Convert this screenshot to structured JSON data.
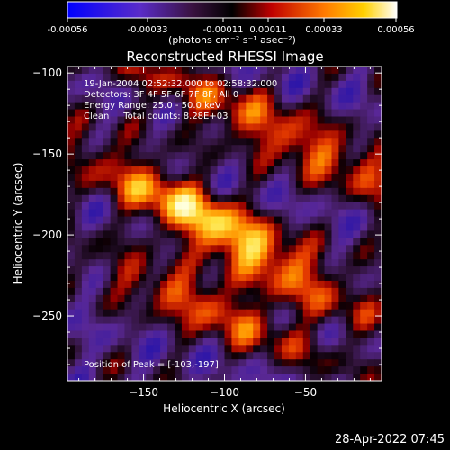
{
  "colorbar": {
    "ticks": [
      "-0.00056",
      "-0.00033",
      "-0.00011",
      "0.00011",
      "0.00033",
      "0.00056"
    ],
    "units": "(photons cm⁻² s⁻¹ asec⁻²)"
  },
  "plot": {
    "title": "Reconstructed RHESSI Image",
    "xlabel": "Heliocentric X (arcsec)",
    "ylabel": "Heliocentric Y (arcsec)",
    "info_lines": [
      "19-Jan-2004 02:52:32.000 to 02:58:32.000",
      "Detectors: 3F 4F 5F 6F 7F 8F, All 0",
      "Energy Range: 25.0 - 50.0 keV",
      "Clean     Total counts: 8.28E+03"
    ],
    "peak_text": "Position of Peak = [-103,-197]"
  },
  "timestamp": "28-Apr-2022 07:45",
  "chart_data": {
    "type": "heatmap",
    "title": "Reconstructed RHESSI Image",
    "xlabel": "Heliocentric X (arcsec)",
    "ylabel": "Heliocentric Y (arcsec)",
    "xlim": [
      -197,
      -3
    ],
    "ylim": [
      -290,
      -96
    ],
    "xticks": [
      -150,
      -100,
      -50
    ],
    "yticks": [
      -100,
      -150,
      -200,
      -250
    ],
    "colorscale_range": [
      -0.00056,
      0.00056
    ],
    "colorscale_ticks": [
      -0.00056,
      -0.00033,
      -0.00011,
      0.00011,
      0.00033,
      0.00056
    ],
    "peak_position": [
      -103,
      -197
    ],
    "colormap": [
      "#0000ff",
      "#6a1cb0",
      "#000000",
      "#ff2000",
      "#ff9c00",
      "#ffffff"
    ]
  }
}
